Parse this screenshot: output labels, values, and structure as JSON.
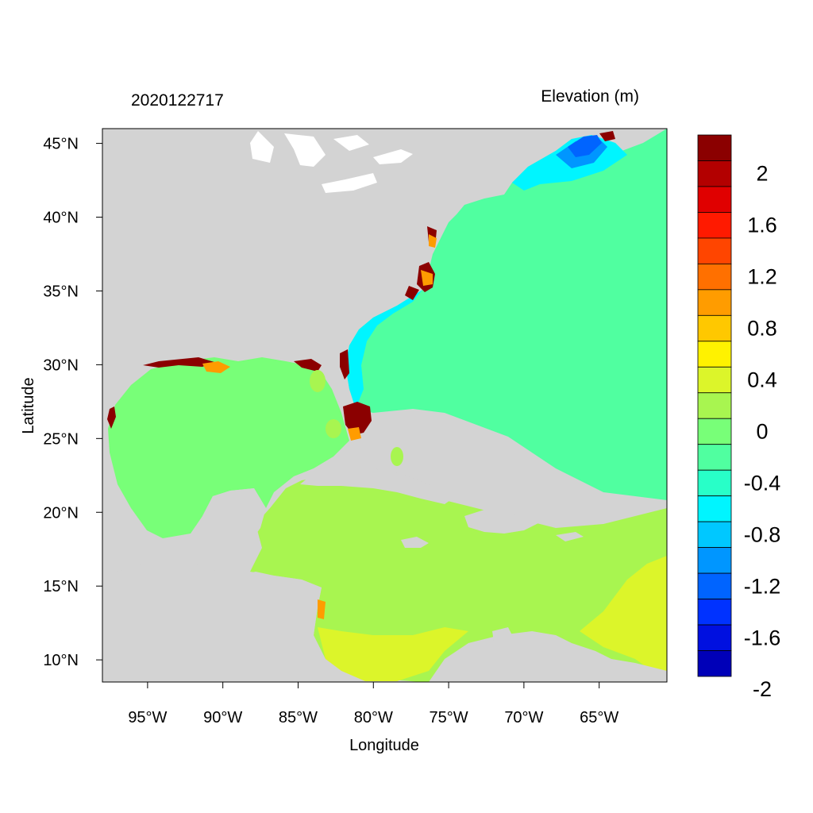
{
  "header": {
    "date_label": "2020122717",
    "title": "Elevation (m)"
  },
  "axes": {
    "xlabel": "Longitude",
    "ylabel": "Latitude",
    "xrange": [
      -98.0,
      -60.5
    ],
    "yrange": [
      8.5,
      46.0
    ],
    "xticks": [
      {
        "value": -95,
        "label": "95°W"
      },
      {
        "value": -90,
        "label": "90°W"
      },
      {
        "value": -85,
        "label": "85°W"
      },
      {
        "value": -80,
        "label": "80°W"
      },
      {
        "value": -75,
        "label": "75°W"
      },
      {
        "value": -70,
        "label": "70°W"
      },
      {
        "value": -65,
        "label": "65°W"
      }
    ],
    "yticks": [
      {
        "value": 45,
        "label": "45°N"
      },
      {
        "value": 40,
        "label": "40°N"
      },
      {
        "value": 35,
        "label": "35°N"
      },
      {
        "value": 30,
        "label": "30°N"
      },
      {
        "value": 25,
        "label": "25°N"
      },
      {
        "value": 20,
        "label": "20°N"
      },
      {
        "value": 15,
        "label": "15°N"
      },
      {
        "value": 10,
        "label": "10°N"
      }
    ]
  },
  "colorbar": {
    "colors_top_to_bottom": [
      "#8b0000",
      "#b30000",
      "#e00000",
      "#ff1a00",
      "#ff4500",
      "#ff7000",
      "#ff9c00",
      "#ffc800",
      "#fff200",
      "#dcf52a",
      "#a8f550",
      "#78ff78",
      "#50ffa0",
      "#28ffc8",
      "#00f5ff",
      "#00c8ff",
      "#0096ff",
      "#0064ff",
      "#0032ff",
      "#0010e0",
      "#0000b8"
    ],
    "labels": [
      {
        "label": "2",
        "value": 2.0
      },
      {
        "label": "1.6",
        "value": 1.6
      },
      {
        "label": "1.2",
        "value": 1.2
      },
      {
        "label": "0.8",
        "value": 0.8
      },
      {
        "label": "0.4",
        "value": 0.4
      },
      {
        "label": "0",
        "value": 0.0
      },
      {
        "label": "-0.4",
        "value": -0.4
      },
      {
        "label": "-0.8",
        "value": -0.8
      },
      {
        "label": "-1.2",
        "value": -1.2
      },
      {
        "label": "-1.6",
        "value": -1.6
      },
      {
        "label": "-2",
        "value": -2.0
      }
    ]
  },
  "map": {
    "land_color": "#d3d3d3",
    "lake_color": "#ffffff",
    "gulf_color": "#78ff78",
    "atlantic_color": "#50ffa0",
    "caribbean_color": "#a8f550",
    "nearshore_color": "#00f5ff",
    "gulf_of_maine_color": "#0064ff",
    "surge_color": "#8b0000"
  }
}
